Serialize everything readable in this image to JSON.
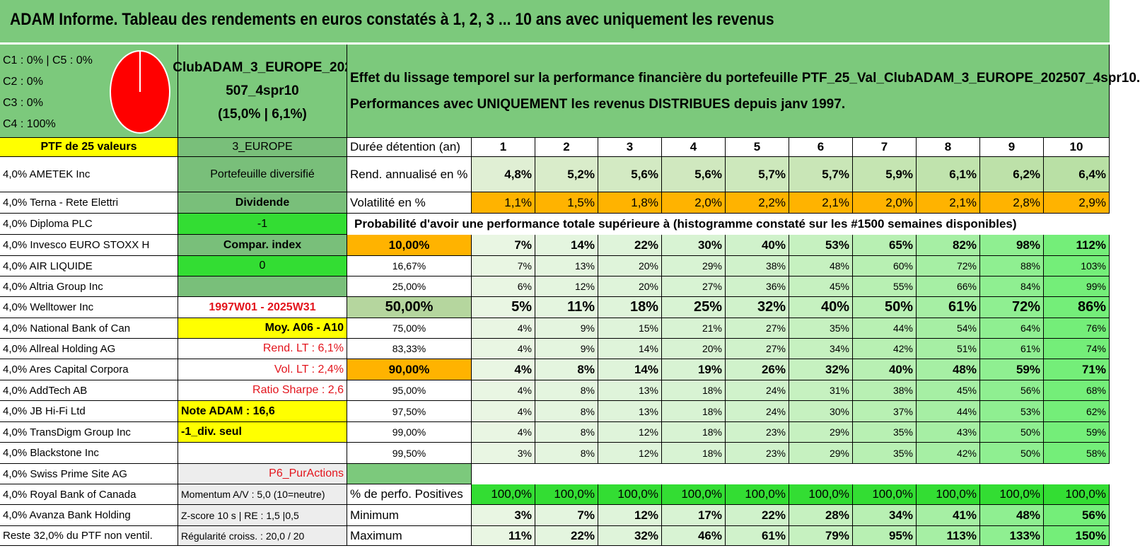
{
  "title": "ADAM Informe. Tableau des rendements en euros constatés à 1, 2, 3 ... 10 ans avec uniquement les revenus",
  "pie": {
    "lines": [
      "C1 : 0% | C5 : 0%",
      "C2 : 0%",
      "C3 : 0%",
      "C4 : 100%"
    ],
    "fill": "#ff0000"
  },
  "portfolio": {
    "name_line1": "ClubADAM_3_EUROPE_202",
    "name_line2": "507_4spr10",
    "stats": "(15,0% | 6,1%)"
  },
  "description": {
    "line1": "Effet du lissage temporel sur la performance financière du portefeuille PTF_25_Val_ClubADAM_3_EUROPE_202507_4spr10.",
    "line2": "Performances avec UNIQUEMENT les revenus DISTRIBUES depuis janv 1997."
  },
  "header_row": {
    "ptf": "PTF de 25 valeurs",
    "zone": "3_EUROPE",
    "duration_label": "Durée détention (an)",
    "years": [
      "1",
      "2",
      "3",
      "4",
      "5",
      "6",
      "7",
      "8",
      "9",
      "10"
    ]
  },
  "rend": {
    "label": "Rend. annualisé en %",
    "values": [
      "4,8%",
      "5,2%",
      "5,6%",
      "5,6%",
      "5,7%",
      "5,7%",
      "5,9%",
      "6,1%",
      "6,2%",
      "6,4%"
    ]
  },
  "vol": {
    "label": "Volatilité en %",
    "values": [
      "1,1%",
      "1,5%",
      "1,8%",
      "2,0%",
      "2,2%",
      "2,1%",
      "2,0%",
      "2,1%",
      "2,8%",
      "2,9%"
    ]
  },
  "prob_title": "Probabilité d'avoir une performance totale supérieure à (histogramme constaté sur les #1500 semaines disponibles)",
  "holdings": [
    "4,0% AMETEK Inc",
    "4,0% Terna - Rete Elettri",
    "4,0% Diploma PLC",
    "4,0% Invesco EURO STOXX H",
    "4,0% AIR LIQUIDE",
    "4,0% Altria Group Inc",
    "4,0% Welltower Inc",
    "4,0% National Bank of Can",
    "4,0% Allreal Holding AG",
    "4,0% Ares Capital Corpora",
    "4,0% AddTech AB",
    "4,0% JB Hi-Fi Ltd",
    "4,0% TransDigm Group Inc",
    "4,0% Blackstone Inc",
    "4,0% Swiss Prime Site AG",
    "4,0% Royal Bank of Canada",
    "4,0% Avanza Bank Holding",
    "Reste 32,0% du PTF non ventil."
  ],
  "info": {
    "diversifie": "Portefeuille diversifié",
    "dividende": "Dividende",
    "div_val": "-1",
    "compar": "Compar. index",
    "compar_val": "0",
    "blank": "",
    "period": "1997W01 - 2025W31",
    "moy": "Moy. A06 - A10",
    "rend_lt": "Rend. LT : 6,1%",
    "vol_lt": "Vol. LT : 2,4%",
    "sharpe": "Ratio Sharpe : 2,6",
    "note": "Note ADAM : 16,6",
    "div_seul": "-1_div. seul",
    "blank2": "",
    "puractions": "P6_PurActions",
    "momentum": "Momentum A/V : 5,0 (10=neutre)",
    "zscore": "Z-score 10 s | RE : 1,5 |0,5",
    "regularite": "Régularité croiss. : 20,0 / 20"
  },
  "prob_rows": [
    {
      "p": "10,00%",
      "v": [
        "7%",
        "14%",
        "22%",
        "30%",
        "40%",
        "53%",
        "65%",
        "82%",
        "98%",
        "112%"
      ]
    },
    {
      "p": "16,67%",
      "v": [
        "7%",
        "13%",
        "20%",
        "29%",
        "38%",
        "48%",
        "60%",
        "72%",
        "88%",
        "103%"
      ]
    },
    {
      "p": "25,00%",
      "v": [
        "6%",
        "12%",
        "20%",
        "27%",
        "36%",
        "45%",
        "55%",
        "66%",
        "84%",
        "99%"
      ]
    },
    {
      "p": "50,00%",
      "v": [
        "5%",
        "11%",
        "18%",
        "25%",
        "32%",
        "40%",
        "50%",
        "61%",
        "72%",
        "86%"
      ]
    },
    {
      "p": "75,00%",
      "v": [
        "4%",
        "9%",
        "15%",
        "21%",
        "27%",
        "35%",
        "44%",
        "54%",
        "64%",
        "76%"
      ]
    },
    {
      "p": "83,33%",
      "v": [
        "4%",
        "9%",
        "14%",
        "20%",
        "27%",
        "34%",
        "42%",
        "51%",
        "61%",
        "74%"
      ]
    },
    {
      "p": "90,00%",
      "v": [
        "4%",
        "8%",
        "14%",
        "19%",
        "26%",
        "32%",
        "40%",
        "48%",
        "59%",
        "71%"
      ]
    },
    {
      "p": "95,00%",
      "v": [
        "4%",
        "8%",
        "13%",
        "18%",
        "24%",
        "31%",
        "38%",
        "45%",
        "56%",
        "68%"
      ]
    },
    {
      "p": "97,50%",
      "v": [
        "4%",
        "8%",
        "13%",
        "18%",
        "24%",
        "30%",
        "37%",
        "44%",
        "53%",
        "62%"
      ]
    },
    {
      "p": "99,00%",
      "v": [
        "4%",
        "8%",
        "12%",
        "18%",
        "23%",
        "29%",
        "35%",
        "43%",
        "50%",
        "59%"
      ]
    },
    {
      "p": "99,50%",
      "v": [
        "3%",
        "8%",
        "12%",
        "18%",
        "23%",
        "29%",
        "35%",
        "42%",
        "50%",
        "58%"
      ]
    }
  ],
  "stats_rows": [
    {
      "label": "% de perfo. Positives",
      "v": [
        "100,0%",
        "100,0%",
        "100,0%",
        "100,0%",
        "100,0%",
        "100,0%",
        "100,0%",
        "100,0%",
        "100,0%",
        "100,0%"
      ]
    },
    {
      "label": "Minimum",
      "v": [
        "3%",
        "7%",
        "12%",
        "17%",
        "22%",
        "28%",
        "34%",
        "41%",
        "48%",
        "56%"
      ]
    },
    {
      "label": "Maximum",
      "v": [
        "11%",
        "22%",
        "32%",
        "46%",
        "61%",
        "79%",
        "95%",
        "113%",
        "133%",
        "150%"
      ]
    }
  ],
  "colors": {
    "header_green": "#7cc97c",
    "mid_green": "#79bf7a",
    "bright_green": "#33dd33",
    "yellow": "#ffff00",
    "orange": "#ffb300",
    "red": "#e3141c"
  }
}
